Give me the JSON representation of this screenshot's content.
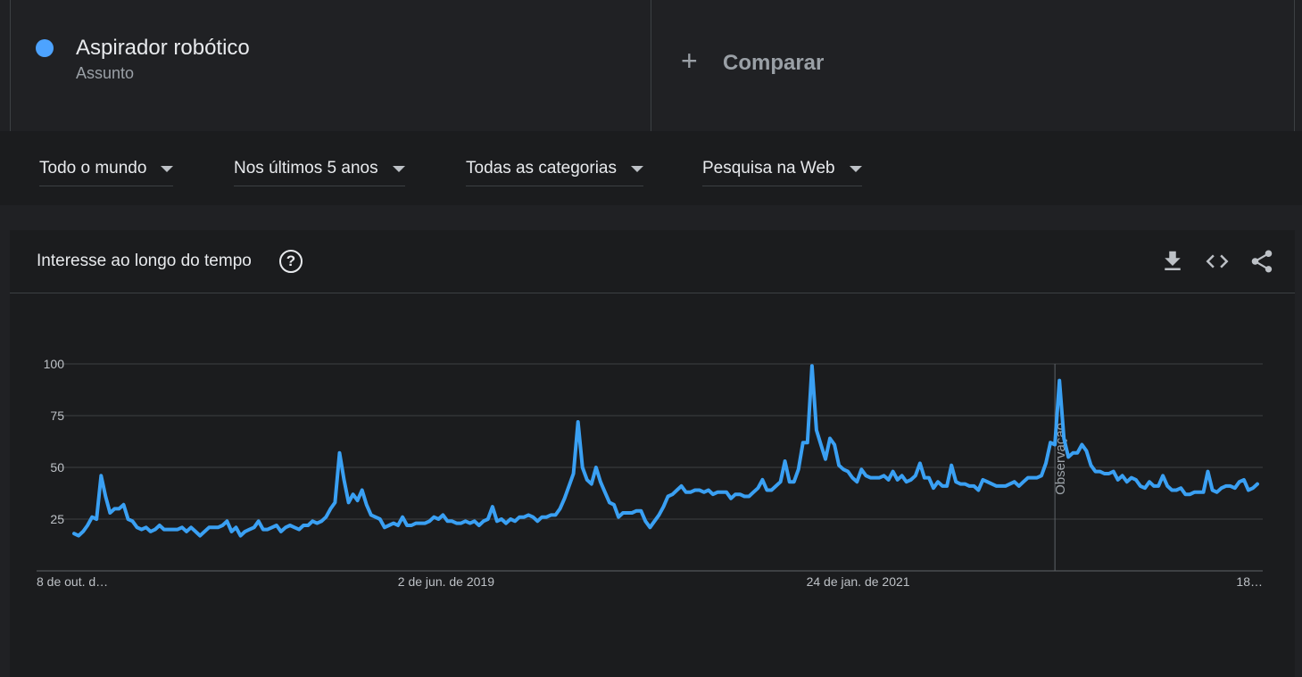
{
  "term": {
    "name": "Aspirador robótico",
    "type": "Assunto",
    "color": "#4da3ff"
  },
  "compare": {
    "plus": "+",
    "label": "Comparar"
  },
  "filters": {
    "region": "Todo o mundo",
    "time": "Nos últimos 5 anos",
    "category": "Todas as categorias",
    "property": "Pesquisa na Web"
  },
  "card": {
    "title": "Interesse ao longo do tempo",
    "help": "?"
  },
  "icons": {
    "help": "help-circle-icon",
    "download": "download-icon",
    "embed": "code-icon",
    "share": "share-icon"
  },
  "chart_data": {
    "type": "line",
    "ylim": [
      0,
      100
    ],
    "yticks": [
      25,
      50,
      75,
      100
    ],
    "xtick_labels": [
      "8 de out. d…",
      "2 de jun. de 2019",
      "24 de jan. de 2021",
      "18…"
    ],
    "annotation": "Observação",
    "annotation_index": 218,
    "series": [
      {
        "color": "#3aa0f3",
        "values": [
          18,
          17,
          19,
          22,
          26,
          25,
          46,
          36,
          28,
          30,
          30,
          32,
          25,
          24,
          21,
          20,
          21,
          19,
          20,
          22,
          20,
          20,
          20,
          20,
          21,
          19,
          21,
          19,
          17,
          19,
          21,
          21,
          21,
          22,
          24,
          19,
          21,
          17,
          19,
          20,
          21,
          24,
          20,
          20,
          21,
          22,
          19,
          21,
          22,
          21,
          20,
          22,
          22,
          24,
          23,
          24,
          26,
          30,
          33,
          57,
          44,
          33,
          37,
          34,
          39,
          32,
          27,
          26,
          25,
          21,
          22,
          23,
          22,
          26,
          22,
          22,
          23,
          23,
          23,
          24,
          26,
          25,
          27,
          24,
          24,
          23,
          23,
          24,
          23,
          24,
          22,
          24,
          25,
          31,
          24,
          25,
          23,
          25,
          24,
          26,
          26,
          27,
          26,
          24,
          26,
          26,
          27,
          27,
          30,
          35,
          41,
          47,
          72,
          50,
          44,
          42,
          50,
          43,
          38,
          33,
          32,
          26,
          28,
          28,
          28,
          29,
          29,
          24,
          21,
          24,
          27,
          31,
          36,
          37,
          39,
          41,
          38,
          38,
          39,
          39,
          38,
          39,
          37,
          38,
          38,
          38,
          35,
          37,
          37,
          36,
          36,
          38,
          40,
          44,
          39,
          39,
          41,
          43,
          53,
          43,
          43,
          49,
          62,
          62,
          99,
          68,
          61,
          54,
          64,
          61,
          51,
          49,
          48,
          45,
          43,
          49,
          46,
          45,
          45,
          45,
          46,
          44,
          48,
          44,
          46,
          43,
          44,
          46,
          52,
          45,
          45,
          40,
          43,
          41,
          41,
          51,
          43,
          42,
          42,
          41,
          41,
          39,
          44,
          43,
          42,
          41,
          41,
          41,
          42,
          43,
          41,
          43,
          45,
          45,
          45,
          46,
          52,
          62,
          61,
          92,
          64,
          55,
          57,
          57,
          61,
          58,
          51,
          48,
          48,
          47,
          47,
          48,
          44,
          46,
          43,
          45,
          44,
          41,
          40,
          43,
          41,
          41,
          46,
          41,
          39,
          39,
          40,
          37,
          37,
          38,
          38,
          38,
          48,
          39,
          38,
          40,
          41,
          41,
          40,
          43,
          44,
          39,
          40,
          42
        ]
      }
    ]
  }
}
